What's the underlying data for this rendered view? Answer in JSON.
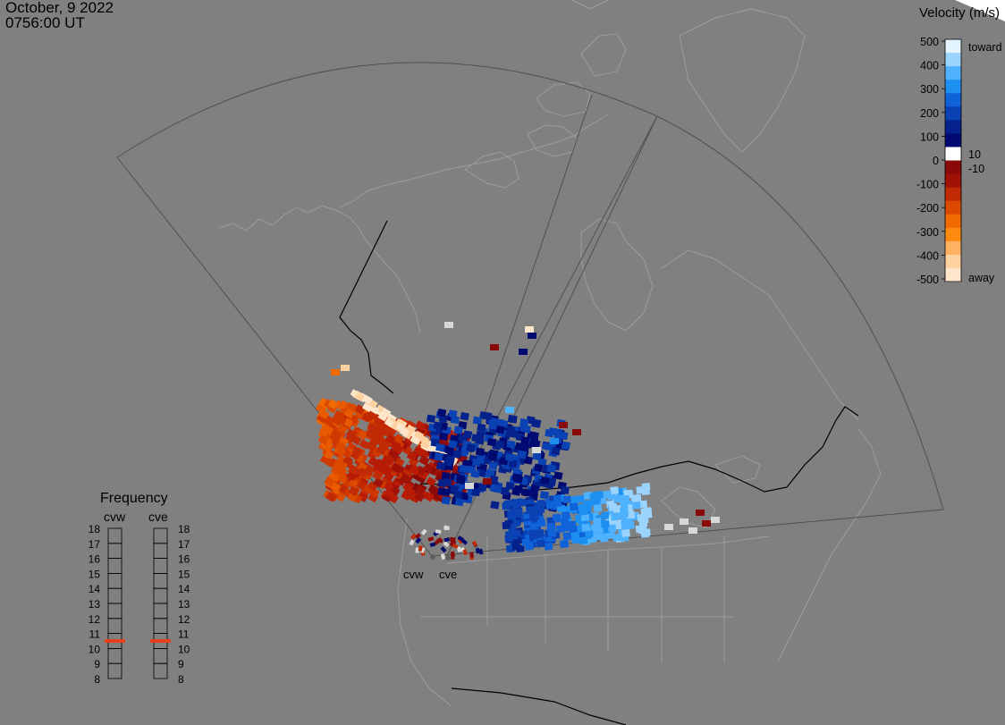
{
  "header": {
    "date": "October, 9 2022",
    "time": "0756:00 UT"
  },
  "velocity_legend": {
    "title": "Velocity (m/s)",
    "ticks": [
      "500",
      "400",
      "300",
      "200",
      "100",
      "0",
      "-100",
      "-200",
      "-300",
      "-400",
      "-500"
    ],
    "toward_label": "toward",
    "away_label": "away",
    "pos_threshold": "10",
    "neg_threshold": "-10",
    "scale_colors": [
      "#e3f3ff",
      "#9ad4ff",
      "#4fb2ff",
      "#1d8ff0",
      "#0f62d8",
      "#0a42b4",
      "#05218c",
      "#000a70",
      "#ffffff",
      "#8a0a0a",
      "#a01208",
      "#c02a04",
      "#dc4a00",
      "#f06a00",
      "#ff8a10",
      "#ffb060",
      "#ffd0a0",
      "#fde6cc"
    ]
  },
  "frequency_panel": {
    "title": "Frequency",
    "stations": [
      "cvw",
      "cve"
    ],
    "levels": [
      "18",
      "17",
      "16",
      "15",
      "14",
      "13",
      "12",
      "11",
      "10",
      "9",
      "8"
    ],
    "active_frequency": {
      "cvw": 10.5,
      "cve": 10.5
    },
    "marker_color": "#e8401a"
  },
  "radar_sites": {
    "cvw_label": "cvw",
    "cve_label": "cve"
  },
  "map_colors": {
    "background": "#808080",
    "coastline": "#9c9c9c",
    "border": "#000000",
    "fov": "#505050"
  }
}
